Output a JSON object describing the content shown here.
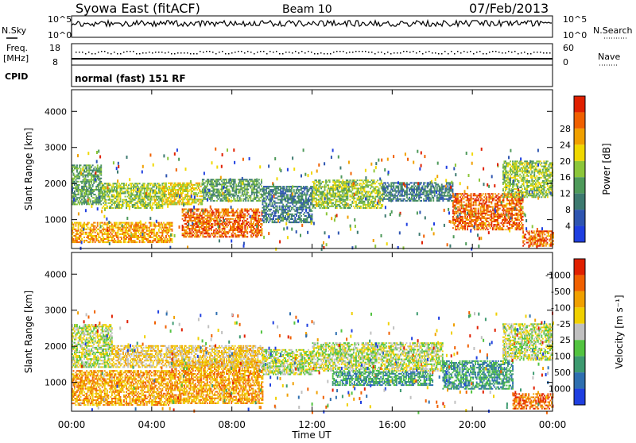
{
  "header": {
    "station": "Syowa East (fitACF)",
    "beam": "Beam 10",
    "date": "07/Feb/2013"
  },
  "panels": {
    "nsky_label": "N.Sky",
    "nsky_top": "10^5",
    "nsky_bottom": "10^0",
    "nsearch_label": "N.Search",
    "nsearch_top": "10^5",
    "nsearch_bottom": "10^0",
    "freq_label": "Freq.",
    "freq_unit": "[MHz]",
    "freq_top": "18",
    "freq_bottom": "8",
    "nave_label": "Nave",
    "nave_top": "60",
    "nave_bottom": "0",
    "cpid_label": "CPID",
    "cpid_value": "normal (fast) 151 RF"
  },
  "chart_data": [
    {
      "type": "heatmap",
      "title": "",
      "ylabel": "Slant Range [km]",
      "xlabel": "",
      "x_ticks": [
        "00:00",
        "04:00",
        "08:00",
        "12:00",
        "16:00",
        "20:00",
        "00:00"
      ],
      "y_ticks": [
        "1000",
        "2000",
        "3000",
        "4000"
      ],
      "ylim": [
        200,
        4600
      ],
      "colorbar": {
        "label": "Power [dB]",
        "ticks": [
          "4",
          "8",
          "12",
          "16",
          "20",
          "24",
          "28"
        ],
        "colors": [
          "#1f3fe0",
          "#2e55b0",
          "#3d7a70",
          "#4e9a5a",
          "#8cc63a",
          "#f0d800",
          "#f0a000",
          "#f06000",
          "#e02000"
        ]
      },
      "regions": [
        {
          "t0": 0.0,
          "t1": 1.5,
          "r0": 1400,
          "r1": 2500,
          "level": 3
        },
        {
          "t0": 1.5,
          "t1": 4.5,
          "r0": 1300,
          "r1": 2000,
          "level": 4
        },
        {
          "t0": 4.5,
          "t1": 6.5,
          "r0": 1400,
          "r1": 2000,
          "level": 5
        },
        {
          "t0": 6.5,
          "t1": 9.5,
          "r0": 1500,
          "r1": 2100,
          "level": 3
        },
        {
          "t0": 5.5,
          "t1": 9.5,
          "r0": 500,
          "r1": 1300,
          "level": 7
        },
        {
          "t0": 0.0,
          "t1": 5.0,
          "r0": 350,
          "r1": 900,
          "level": 6
        },
        {
          "t0": 9.5,
          "t1": 12.0,
          "r0": 900,
          "r1": 1900,
          "level": 2
        },
        {
          "t0": 12.0,
          "t1": 15.5,
          "r0": 1300,
          "r1": 2100,
          "level": 4
        },
        {
          "t0": 15.5,
          "t1": 19.0,
          "r0": 1500,
          "r1": 2000,
          "level": 2
        },
        {
          "t0": 19.0,
          "t1": 22.5,
          "r0": 700,
          "r1": 1700,
          "level": 7
        },
        {
          "t0": 21.5,
          "t1": 24.0,
          "r0": 1600,
          "r1": 2600,
          "level": 4
        },
        {
          "t0": 22.5,
          "t1": 24.0,
          "r0": 250,
          "r1": 700,
          "level": 7
        }
      ]
    },
    {
      "type": "heatmap",
      "title": "",
      "ylabel": "Slant Range [km]",
      "xlabel": "Time UT",
      "x_ticks": [
        "00:00",
        "04:00",
        "08:00",
        "12:00",
        "16:00",
        "20:00",
        "00:00"
      ],
      "y_ticks": [
        "1000",
        "2000",
        "3000",
        "4000"
      ],
      "ylim": [
        200,
        4600
      ],
      "colorbar": {
        "label": "Velocity [m s-1]",
        "ticks": [
          "1000",
          "500",
          "100",
          "25",
          "-25",
          "-100",
          "-500",
          "-1000"
        ],
        "colors": [
          "#1f3fe0",
          "#2e6fb0",
          "#3d9a70",
          "#52c340",
          "#c0c0c0",
          "#f0d000",
          "#f0a000",
          "#f06000",
          "#e02000"
        ]
      },
      "regions": [
        {
          "t0": 0.0,
          "t1": 2.0,
          "r0": 1400,
          "r1": 2600,
          "level": 4
        },
        {
          "t0": 0.0,
          "t1": 5.0,
          "r0": 350,
          "r1": 1300,
          "level": 6
        },
        {
          "t0": 5.0,
          "t1": 9.5,
          "r0": 400,
          "r1": 1600,
          "level": 6
        },
        {
          "t0": 2.0,
          "t1": 9.5,
          "r0": 1400,
          "r1": 2000,
          "level": 5
        },
        {
          "t0": 9.5,
          "t1": 12.0,
          "r0": 1200,
          "r1": 1900,
          "level": 4
        },
        {
          "t0": 12.0,
          "t1": 18.5,
          "r0": 1300,
          "r1": 2100,
          "level": 4
        },
        {
          "t0": 13.0,
          "t1": 18.0,
          "r0": 900,
          "r1": 1300,
          "level": 2
        },
        {
          "t0": 18.5,
          "t1": 22.0,
          "r0": 800,
          "r1": 1600,
          "level": 2
        },
        {
          "t0": 21.5,
          "t1": 24.0,
          "r0": 1600,
          "r1": 2600,
          "level": 4
        },
        {
          "t0": 22.0,
          "t1": 24.0,
          "r0": 250,
          "r1": 700,
          "level": 7
        }
      ]
    }
  ],
  "time_label": "Time UT",
  "colorbar_labels": {
    "power": "Power [dB]",
    "velocity": "Velocity [m s⁻¹]"
  }
}
